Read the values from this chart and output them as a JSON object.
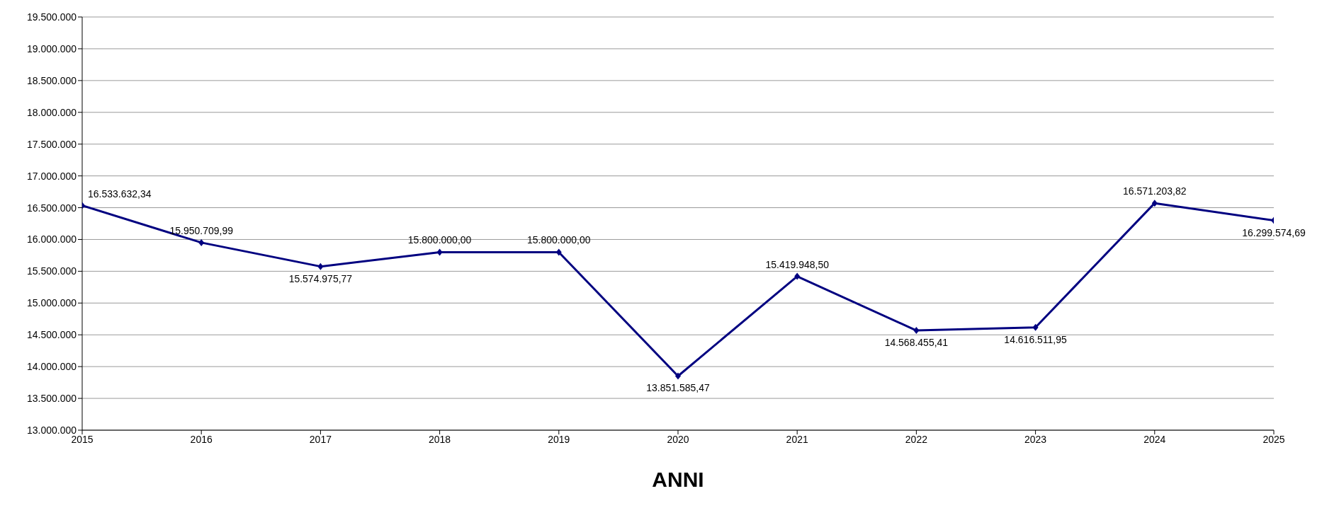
{
  "chart_data": {
    "type": "line",
    "xlabel": "ANNI",
    "x": [
      2015,
      2016,
      2017,
      2018,
      2019,
      2020,
      2021,
      2022,
      2023,
      2024,
      2025
    ],
    "series": [
      {
        "color": "#000080",
        "values": [
          16533632.34,
          15950709.99,
          15574975.77,
          15800000.0,
          15800000.0,
          13851585.47,
          15419948.5,
          14568455.41,
          14616511.95,
          16571203.82,
          16299574.69
        ],
        "value_labels": [
          "16.533.632,34",
          "15.950.709,99",
          "15.574.975,77",
          "15.800.000,00",
          "15.800.000,00",
          "13.851.585,47",
          "15.419.948,50",
          "14.568.455,41",
          "14.616.511,95",
          "16.571.203,82",
          "16.299.574,69"
        ]
      }
    ],
    "xlim": [
      2015,
      2025
    ],
    "xticks": [
      2015,
      2016,
      2017,
      2018,
      2019,
      2020,
      2021,
      2022,
      2023,
      2024,
      2025
    ],
    "ylim": [
      13000000,
      19500000
    ],
    "yticks": [
      {
        "value": 13000000,
        "label": "13.000.000"
      },
      {
        "value": 13500000,
        "label": "13.500.000"
      },
      {
        "value": 14000000,
        "label": "14.000.000"
      },
      {
        "value": 14500000,
        "label": "14.500.000"
      },
      {
        "value": 15000000,
        "label": "15.000.000"
      },
      {
        "value": 15500000,
        "label": "15.500.000"
      },
      {
        "value": 16000000,
        "label": "16.000.000"
      },
      {
        "value": 16500000,
        "label": "16.500.000"
      },
      {
        "value": 17000000,
        "label": "17.000.000"
      },
      {
        "value": 17500000,
        "label": "17.500.000"
      },
      {
        "value": 18000000,
        "label": "18.000.000"
      },
      {
        "value": 18500000,
        "label": "18.500.000"
      },
      {
        "value": 19000000,
        "label": "19.000.000"
      },
      {
        "value": 19500000,
        "label": "19.500.000"
      }
    ],
    "grid": "y",
    "marker": "diamond",
    "line_style": "solid",
    "legend": false
  }
}
